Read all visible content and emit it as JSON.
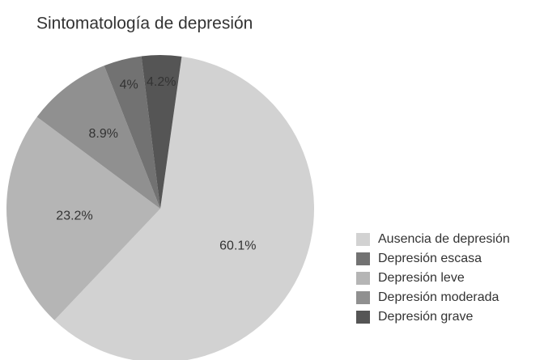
{
  "chart_data": {
    "type": "pie",
    "title": "Sintomatología de depresión",
    "categories": [
      "Ausencia de depresión",
      "Depresión escasa",
      "Depresión leve",
      "Depresión moderada",
      "Depresión grave"
    ],
    "values": [
      60.1,
      4,
      23.2,
      8.9,
      4.2
    ],
    "value_labels": [
      "60.1%",
      "4%",
      "23.2%",
      "8.9%",
      "4.2%"
    ],
    "colors": [
      "#d2d2d2",
      "#727272",
      "#b5b5b5",
      "#909090",
      "#555555"
    ]
  }
}
